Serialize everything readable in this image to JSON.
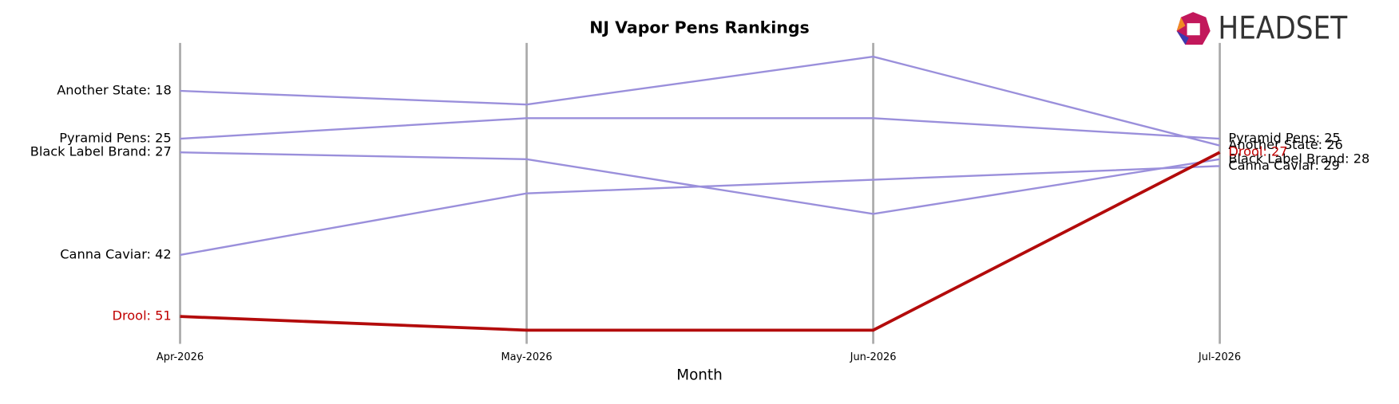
{
  "chart_data": {
    "type": "bump",
    "title": "NJ Vapor Pens Rankings",
    "x_label": "Month",
    "logo": "HEADSET",
    "categories": [
      "Apr-2026",
      "May-2026",
      "Jun-2026",
      "Jul-2026"
    ],
    "ylim": [
      55,
      11
    ],
    "inverted": true,
    "series": [
      {
        "name": "Another State",
        "color": "#9a8fdb",
        "label_color": "#000000",
        "values": [
          18,
          20,
          13,
          26
        ],
        "value_labels": [
          "Another State: 18",
          null,
          null,
          "Another State: 26"
        ]
      },
      {
        "name": "Pyramid Pens",
        "color": "#9a8fdb",
        "label_color": "#000000",
        "values": [
          25,
          22,
          22,
          25
        ],
        "value_labels": [
          "Pyramid Pens: 25",
          null,
          null,
          "Pyramid Pens: 25"
        ]
      },
      {
        "name": "Black Label Brand",
        "color": "#9a8fdb",
        "label_color": "#000000",
        "values": [
          27,
          28,
          36,
          28
        ],
        "value_labels": [
          "Black Label Brand: 27",
          null,
          null,
          "Black Label Brand: 28"
        ]
      },
      {
        "name": "Canna Caviar",
        "color": "#9a8fdb",
        "label_color": "#000000",
        "values": [
          42,
          33,
          31,
          29
        ],
        "value_labels": [
          "Canna Caviar: 42",
          null,
          null,
          "Canna Caviar: 29"
        ]
      },
      {
        "name": "Drool",
        "color": "#b30b0b",
        "label_color": "#c00000",
        "values": [
          51,
          53,
          53,
          27
        ],
        "value_labels": [
          "Drool: 51",
          null,
          null,
          "Drool: 27"
        ],
        "highlight": true
      }
    ]
  }
}
